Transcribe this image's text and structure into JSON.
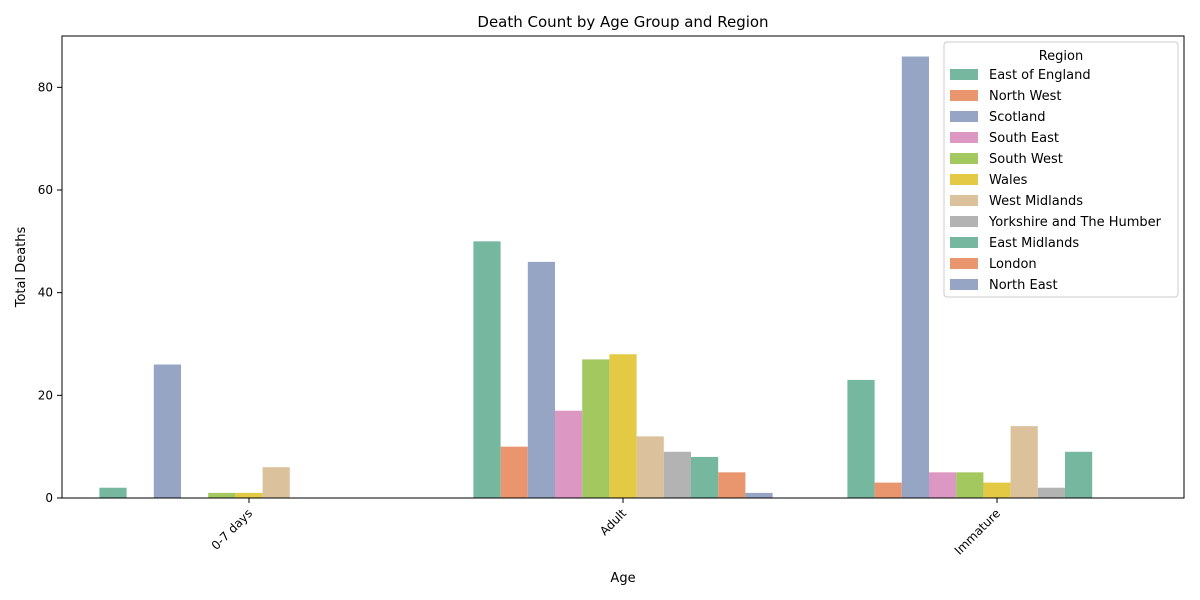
{
  "chart_data": {
    "type": "bar",
    "title": "Death Count by Age Group and Region",
    "xlabel": "Age",
    "ylabel": "Total Deaths",
    "categories": [
      "0-7 days",
      "Adult",
      "Immature"
    ],
    "ylim": [
      0,
      90
    ],
    "yticks": [
      0,
      20,
      40,
      60,
      80
    ],
    "grid": false,
    "legend": {
      "title": "Region",
      "placement": "top-right"
    },
    "series": [
      {
        "name": "East of England",
        "color": "#76b7a0",
        "values": [
          2,
          50,
          23
        ]
      },
      {
        "name": "North West",
        "color": "#e9966f",
        "values": [
          0,
          10,
          3
        ]
      },
      {
        "name": "Scotland",
        "color": "#96a5c4",
        "values": [
          26,
          46,
          86
        ]
      },
      {
        "name": "South East",
        "color": "#dc97c3",
        "values": [
          0,
          17,
          5
        ]
      },
      {
        "name": "South West",
        "color": "#a3c860",
        "values": [
          1,
          27,
          5
        ]
      },
      {
        "name": "Wales",
        "color": "#e3c944",
        "values": [
          1,
          28,
          3
        ]
      },
      {
        "name": "West Midlands",
        "color": "#dbc29c",
        "values": [
          6,
          12,
          14
        ]
      },
      {
        "name": "Yorkshire and The Humber",
        "color": "#b3b3b3",
        "values": [
          0,
          9,
          2
        ]
      },
      {
        "name": "East Midlands",
        "color": "#76b7a0",
        "values": [
          0,
          8,
          9
        ]
      },
      {
        "name": "London",
        "color": "#e9966f",
        "values": [
          0,
          5,
          0
        ]
      },
      {
        "name": "North East",
        "color": "#96a5c4",
        "values": [
          0,
          1,
          0
        ]
      }
    ]
  }
}
